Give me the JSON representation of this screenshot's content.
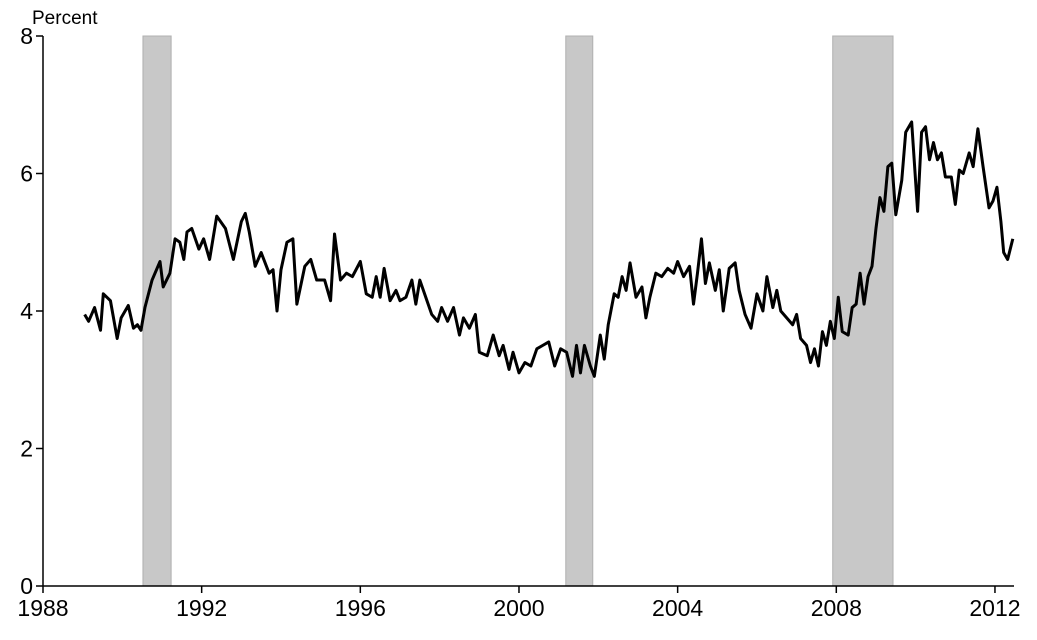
{
  "chart_data": {
    "type": "line",
    "y_label": "Percent",
    "xlim": [
      1988,
      2012.48
    ],
    "ylim": [
      0,
      8
    ],
    "xticks": [
      1988,
      1992,
      1996,
      2000,
      2004,
      2008,
      2012
    ],
    "yticks": [
      0,
      2,
      4,
      6,
      8
    ],
    "shaded": [
      [
        1990.52,
        1991.23
      ],
      [
        2001.18,
        2001.86
      ],
      [
        2007.91,
        2009.43
      ]
    ],
    "shade_color": "#c8c8c8",
    "series": [
      {
        "color": "#000000",
        "x": [
          1989.05,
          1989.15,
          1989.3,
          1989.45,
          1989.52,
          1989.7,
          1989.87,
          1989.97,
          1990.15,
          1990.28,
          1990.38,
          1990.47,
          1990.57,
          1990.75,
          1990.95,
          1991.03,
          1991.2,
          1991.33,
          1991.45,
          1991.55,
          1991.63,
          1991.75,
          1991.93,
          1992.05,
          1992.2,
          1992.38,
          1992.6,
          1992.8,
          1993.0,
          1993.1,
          1993.2,
          1993.35,
          1993.5,
          1993.7,
          1993.8,
          1993.9,
          1994.0,
          1994.15,
          1994.3,
          1994.4,
          1994.6,
          1994.75,
          1994.9,
          1995.1,
          1995.25,
          1995.35,
          1995.5,
          1995.65,
          1995.8,
          1996.0,
          1996.15,
          1996.3,
          1996.4,
          1996.5,
          1996.6,
          1996.75,
          1996.9,
          1997.0,
          1997.15,
          1997.3,
          1997.4,
          1997.5,
          1997.65,
          1997.8,
          1997.95,
          1998.05,
          1998.2,
          1998.35,
          1998.5,
          1998.6,
          1998.75,
          1998.9,
          1999.0,
          1999.2,
          1999.35,
          1999.5,
          1999.6,
          1999.75,
          1999.85,
          2000.0,
          2000.15,
          2000.3,
          2000.45,
          2000.6,
          2000.75,
          2000.9,
          2001.05,
          2001.2,
          2001.35,
          2001.45,
          2001.55,
          2001.65,
          2001.8,
          2001.9,
          2002.05,
          2002.15,
          2002.25,
          2002.4,
          2002.5,
          2002.6,
          2002.7,
          2002.8,
          2002.95,
          2003.1,
          2003.2,
          2003.3,
          2003.45,
          2003.6,
          2003.75,
          2003.9,
          2004.0,
          2004.15,
          2004.3,
          2004.4,
          2004.5,
          2004.6,
          2004.7,
          2004.8,
          2004.95,
          2005.05,
          2005.15,
          2005.3,
          2005.45,
          2005.55,
          2005.7,
          2005.85,
          2006.0,
          2006.15,
          2006.25,
          2006.4,
          2006.5,
          2006.6,
          2006.75,
          2006.9,
          2007.0,
          2007.1,
          2007.25,
          2007.35,
          2007.45,
          2007.55,
          2007.65,
          2007.75,
          2007.85,
          2007.95,
          2008.05,
          2008.15,
          2008.3,
          2008.4,
          2008.5,
          2008.6,
          2008.7,
          2008.8,
          2008.9,
          2009.0,
          2009.1,
          2009.2,
          2009.3,
          2009.4,
          2009.5,
          2009.65,
          2009.75,
          2009.9,
          2010.05,
          2010.15,
          2010.25,
          2010.35,
          2010.45,
          2010.55,
          2010.65,
          2010.75,
          2010.9,
          2011.0,
          2011.1,
          2011.2,
          2011.35,
          2011.45,
          2011.57,
          2011.7,
          2011.85,
          2011.95,
          2012.05,
          2012.15,
          2012.22,
          2012.32,
          2012.45
        ],
        "values": [
          3.95,
          3.85,
          4.05,
          3.72,
          4.25,
          4.15,
          3.6,
          3.9,
          4.08,
          3.75,
          3.8,
          3.72,
          4.05,
          4.45,
          4.72,
          4.35,
          4.55,
          5.05,
          5.0,
          4.75,
          5.15,
          5.2,
          4.9,
          5.05,
          4.75,
          5.38,
          5.2,
          4.75,
          5.3,
          5.42,
          5.15,
          4.65,
          4.85,
          4.55,
          4.6,
          4.0,
          4.6,
          5.0,
          5.05,
          4.1,
          4.65,
          4.75,
          4.45,
          4.45,
          4.15,
          5.12,
          4.45,
          4.55,
          4.5,
          4.72,
          4.25,
          4.2,
          4.5,
          4.2,
          4.62,
          4.15,
          4.3,
          4.15,
          4.2,
          4.45,
          4.1,
          4.45,
          4.2,
          3.95,
          3.85,
          4.05,
          3.85,
          4.05,
          3.65,
          3.9,
          3.75,
          3.95,
          3.4,
          3.35,
          3.65,
          3.35,
          3.5,
          3.15,
          3.4,
          3.1,
          3.25,
          3.2,
          3.45,
          3.5,
          3.55,
          3.2,
          3.45,
          3.4,
          3.05,
          3.5,
          3.1,
          3.5,
          3.2,
          3.05,
          3.65,
          3.3,
          3.8,
          4.25,
          4.2,
          4.5,
          4.3,
          4.7,
          4.2,
          4.35,
          3.9,
          4.2,
          4.55,
          4.5,
          4.62,
          4.55,
          4.72,
          4.5,
          4.65,
          4.1,
          4.55,
          5.05,
          4.4,
          4.7,
          4.3,
          4.6,
          4.0,
          4.62,
          4.7,
          4.3,
          3.95,
          3.75,
          4.25,
          4.0,
          4.5,
          4.05,
          4.3,
          4.0,
          3.9,
          3.8,
          3.95,
          3.6,
          3.5,
          3.25,
          3.45,
          3.2,
          3.7,
          3.5,
          3.85,
          3.6,
          4.2,
          3.7,
          3.65,
          4.05,
          4.1,
          4.55,
          4.1,
          4.5,
          4.65,
          5.2,
          5.65,
          5.45,
          6.1,
          6.15,
          5.4,
          5.9,
          6.6,
          6.75,
          5.45,
          6.6,
          6.68,
          6.2,
          6.45,
          6.2,
          6.3,
          5.95,
          5.95,
          5.55,
          6.05,
          6.0,
          6.3,
          6.1,
          6.65,
          6.1,
          5.5,
          5.6,
          5.8,
          5.3,
          4.85,
          4.75,
          5.05
        ]
      }
    ]
  }
}
